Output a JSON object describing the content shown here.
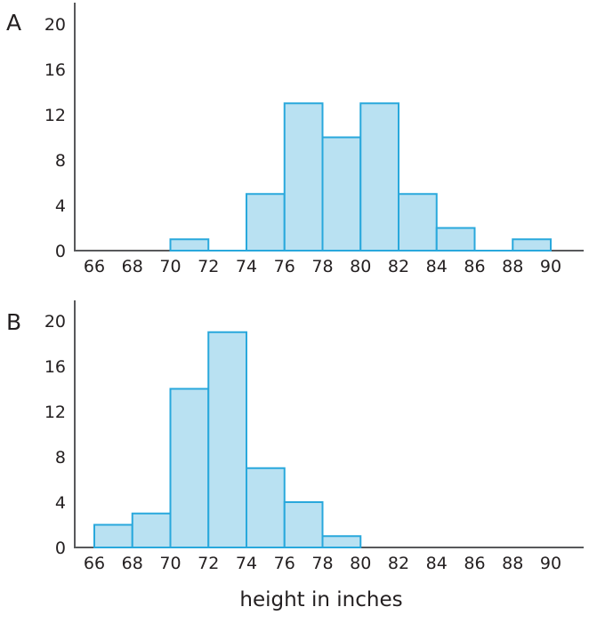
{
  "figure": {
    "xlabel": "height in inches",
    "background": "#ffffff",
    "colors": {
      "bar_fill": "#b9e1f2",
      "bar_stroke": "#29a8dc",
      "axis": "#58595b",
      "text": "#231f20"
    }
  },
  "chart_data": [
    {
      "type": "bar",
      "subtype": "histogram",
      "panel_label": "A",
      "title": "",
      "xlabel": "height in inches",
      "ylabel": "",
      "bin_width": 2,
      "bin_edges": [
        70,
        72,
        74,
        76,
        78,
        80,
        82,
        84,
        86,
        88,
        90
      ],
      "counts": [
        1,
        0,
        5,
        13,
        10,
        13,
        5,
        2,
        0,
        1
      ],
      "x_ticks": [
        66,
        68,
        70,
        72,
        74,
        76,
        78,
        80,
        82,
        84,
        86,
        88,
        90
      ],
      "y_ticks": [
        0,
        4,
        8,
        12,
        16,
        20
      ],
      "xlim": [
        65,
        92
      ],
      "ylim": [
        0,
        22
      ],
      "grid": false,
      "legend": null
    },
    {
      "type": "bar",
      "subtype": "histogram",
      "panel_label": "B",
      "title": "",
      "xlabel": "height in inches",
      "ylabel": "",
      "bin_width": 2,
      "bin_edges": [
        66,
        68,
        70,
        72,
        74,
        76,
        78,
        80
      ],
      "counts": [
        2,
        3,
        14,
        19,
        7,
        4,
        1
      ],
      "x_ticks": [
        66,
        68,
        70,
        72,
        74,
        76,
        78,
        80,
        82,
        84,
        86,
        88,
        90
      ],
      "y_ticks": [
        0,
        4,
        8,
        12,
        16,
        20
      ],
      "xlim": [
        65,
        92
      ],
      "ylim": [
        0,
        22
      ],
      "grid": false,
      "legend": null
    }
  ]
}
